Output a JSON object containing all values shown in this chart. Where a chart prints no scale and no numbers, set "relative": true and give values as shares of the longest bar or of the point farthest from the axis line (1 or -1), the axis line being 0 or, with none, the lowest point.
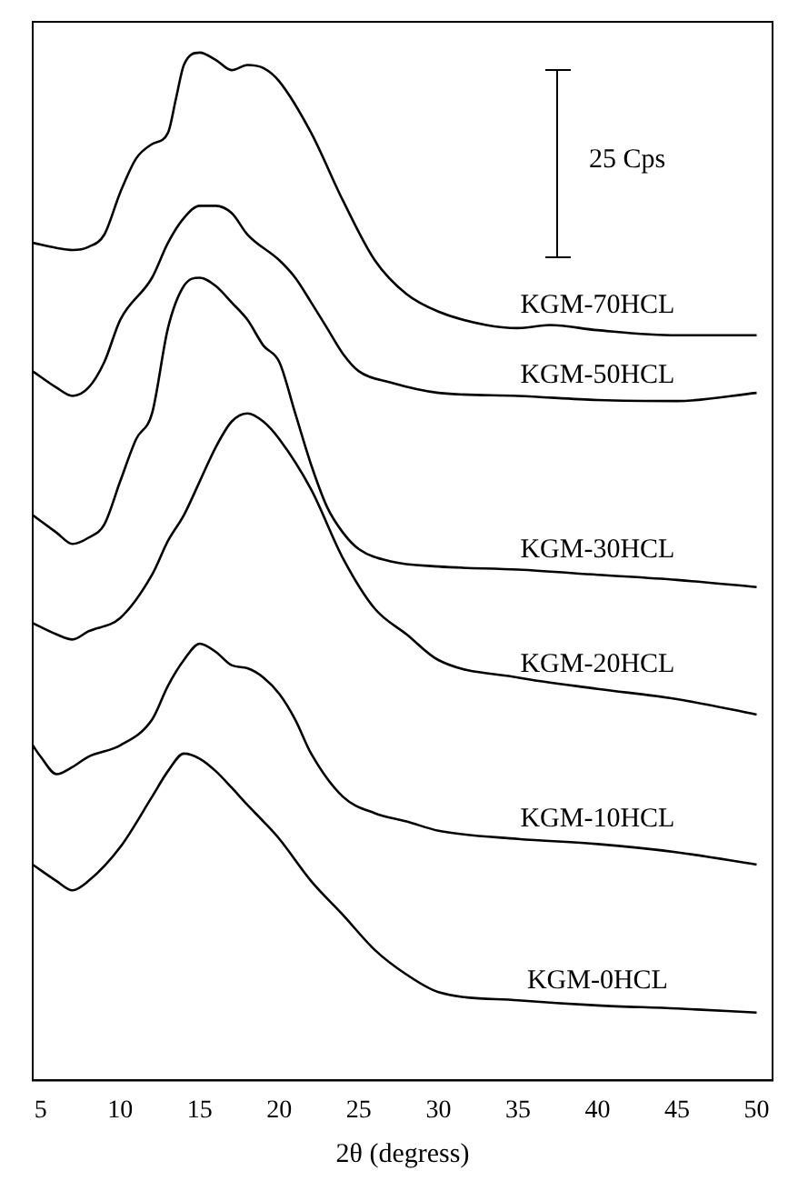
{
  "chart_data": {
    "type": "line",
    "relative": true,
    "xlabel": "2θ (degress)",
    "xlim": [
      4.5,
      51
    ],
    "xticks": [
      5,
      10,
      15,
      20,
      25,
      30,
      35,
      40,
      45,
      50
    ],
    "grid": false,
    "marker": "none",
    "line_style": "solid",
    "annotations": [
      "25 Cps"
    ],
    "series": [
      {
        "name": "KGM-70HCL",
        "color": "#000000",
        "x": [
          4.5,
          6,
          7,
          8,
          9,
          10,
          11,
          12,
          13,
          13.5,
          14,
          15,
          16,
          17,
          18,
          19,
          20,
          22,
          24,
          26,
          28,
          30,
          33,
          35,
          37,
          40,
          45,
          50
        ],
        "values": [
          0.815,
          0.81,
          0.808,
          0.811,
          0.823,
          0.864,
          0.897,
          0.911,
          0.922,
          0.955,
          0.988,
          1,
          0.993,
          0.983,
          0.988,
          0.985,
          0.972,
          0.922,
          0.856,
          0.798,
          0.765,
          0.748,
          0.735,
          0.732,
          0.735,
          0.73,
          0.725,
          0.725
        ]
      },
      {
        "name": "KGM-50HCL",
        "color": "#000000",
        "x": [
          4.5,
          6,
          7,
          8,
          9,
          10,
          12,
          13,
          14,
          15,
          16,
          17,
          18,
          20,
          21,
          22,
          23,
          24,
          25,
          27,
          30,
          35,
          40,
          45,
          50
        ],
        "values": [
          0.69,
          0.674,
          0.666,
          0.674,
          0.699,
          0.74,
          0.781,
          0.815,
          0.839,
          0.851,
          0.851,
          0.844,
          0.823,
          0.798,
          0.781,
          0.757,
          0.732,
          0.707,
          0.69,
          0.679,
          0.669,
          0.666,
          0.662,
          0.661,
          0.669
        ]
      },
      {
        "name": "KGM-30HCL",
        "color": "#000000",
        "x": [
          4.5,
          6,
          7,
          8,
          9,
          10,
          11,
          12,
          13,
          14,
          15,
          16,
          17,
          18,
          19,
          20,
          21,
          22,
          23,
          24,
          25,
          27,
          30,
          35,
          40,
          45,
          50
        ],
        "values": [
          0.55,
          0.533,
          0.522,
          0.528,
          0.541,
          0.583,
          0.624,
          0.649,
          0.732,
          0.773,
          0.781,
          0.773,
          0.757,
          0.74,
          0.715,
          0.699,
          0.649,
          0.599,
          0.558,
          0.533,
          0.517,
          0.505,
          0.5,
          0.497,
          0.492,
          0.487,
          0.48
        ]
      },
      {
        "name": "KGM-20HCL",
        "color": "#000000",
        "x": [
          4.5,
          6,
          7,
          8,
          10,
          12,
          13,
          14,
          15,
          16,
          17,
          18,
          19,
          20,
          22,
          24,
          26,
          28,
          30,
          35,
          40,
          45,
          50
        ],
        "values": [
          0.445,
          0.434,
          0.429,
          0.437,
          0.45,
          0.492,
          0.525,
          0.55,
          0.583,
          0.616,
          0.641,
          0.649,
          0.641,
          0.624,
          0.575,
          0.508,
          0.459,
          0.434,
          0.409,
          0.392,
          0.381,
          0.371,
          0.356
        ]
      },
      {
        "name": "KGM-10HCL",
        "color": "#000000",
        "x": [
          4.5,
          5,
          6,
          7,
          8,
          10,
          12,
          13,
          14,
          15,
          16,
          17,
          18,
          19,
          20,
          21,
          22,
          24,
          26,
          28,
          30,
          35,
          40,
          45,
          50
        ],
        "values": [
          0.326,
          0.315,
          0.298,
          0.305,
          0.315,
          0.326,
          0.351,
          0.384,
          0.409,
          0.425,
          0.417,
          0.404,
          0.401,
          0.392,
          0.376,
          0.351,
          0.318,
          0.276,
          0.26,
          0.252,
          0.243,
          0.235,
          0.23,
          0.222,
          0.21
        ]
      },
      {
        "name": "KGM-0HCL",
        "color": "#000000",
        "x": [
          4.5,
          6,
          7,
          8,
          10,
          12,
          13,
          14,
          15,
          16,
          17,
          18,
          19,
          20,
          22,
          24,
          26,
          28,
          30,
          35,
          40,
          45,
          50
        ],
        "values": [
          0.21,
          0.194,
          0.185,
          0.194,
          0.227,
          0.276,
          0.301,
          0.318,
          0.313,
          0.301,
          0.285,
          0.268,
          0.252,
          0.235,
          0.194,
          0.161,
          0.127,
          0.103,
          0.086,
          0.078,
          0.073,
          0.07,
          0.066
        ]
      }
    ]
  }
}
